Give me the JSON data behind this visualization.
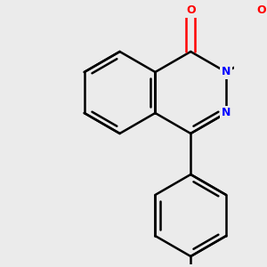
{
  "background_color": "#ebebeb",
  "bond_color": "#000000",
  "nitrogen_color": "#0000ff",
  "oxygen_color": "#ff0000",
  "bond_width": 1.8,
  "figsize": [
    3.0,
    3.0
  ],
  "dpi": 100,
  "xlim": [
    -2.2,
    2.8
  ],
  "ylim": [
    -4.2,
    2.2
  ]
}
